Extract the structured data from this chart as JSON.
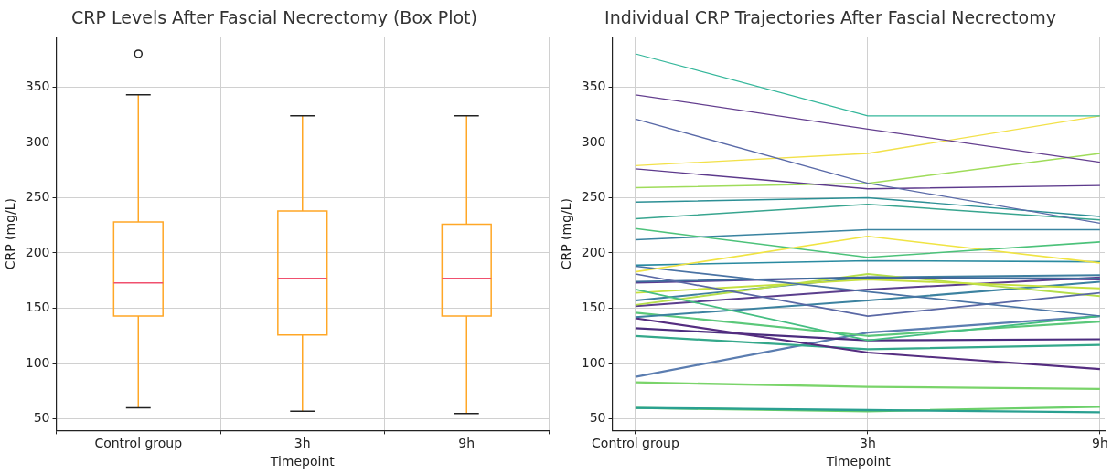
{
  "chart_data": [
    {
      "type": "box",
      "title": "CRP Levels After Fascial Necrectomy (Box Plot)",
      "xlabel": "Timepoint",
      "ylabel": "CRP (mg/L)",
      "categories": [
        "Control group",
        "3h",
        "9h"
      ],
      "color": "#ffa726",
      "ylim": [
        39.5,
        395
      ],
      "yticks": [
        50,
        100,
        150,
        200,
        250,
        300,
        350
      ],
      "grid": true,
      "legend": false,
      "boxes": [
        {
          "low": 60,
          "q1": 143,
          "median": 173,
          "q3": 228,
          "high": 343,
          "outliers": [
            380
          ]
        },
        {
          "low": 57,
          "q1": 126,
          "median": 177,
          "q3": 238,
          "high": 324
        },
        {
          "low": 55,
          "q1": 143,
          "median": 177,
          "q3": 226,
          "high": 324
        }
      ]
    },
    {
      "type": "line",
      "title": "Individual CRP Trajectories After Fascial Necrectomy",
      "xlabel": "Timepoint",
      "ylabel": "CRP (mg/L)",
      "categories": [
        "Control group",
        "3h",
        "9h"
      ],
      "ylim": [
        39.5,
        395
      ],
      "yticks": [
        50,
        100,
        150,
        200,
        250,
        300,
        350
      ],
      "grid": true,
      "legend": false,
      "marker": "none",
      "line_style": "solid",
      "series": [
        {
          "color": "#35b79b",
          "values": [
            380,
            324,
            324
          ]
        },
        {
          "color": "#643f8f",
          "values": [
            343,
            312,
            282
          ]
        },
        {
          "color": "#5a6aa8",
          "values": [
            321,
            263,
            227
          ]
        },
        {
          "color": "#f2e14a",
          "values": [
            279,
            290,
            324
          ]
        },
        {
          "color": "#5d3a8c",
          "values": [
            276,
            258,
            261
          ]
        },
        {
          "color": "#9fdc5a",
          "values": [
            259,
            263,
            290
          ]
        },
        {
          "color": "#2c8f95",
          "values": [
            246,
            250,
            233
          ]
        },
        {
          "color": "#38a58f",
          "values": [
            231,
            244,
            230
          ]
        },
        {
          "color": "#4cc27a",
          "values": [
            222,
            196,
            210
          ]
        },
        {
          "color": "#3a83a0",
          "values": [
            212,
            221,
            221
          ]
        },
        {
          "color": "#f0e443",
          "values": [
            183,
            215,
            191
          ]
        },
        {
          "color": "#2a8aa0",
          "values": [
            189,
            193,
            192
          ]
        },
        {
          "color": "#4a73a4",
          "values": [
            188,
            165,
            143
          ]
        },
        {
          "color": "#5a68a5",
          "values": [
            181,
            143,
            164
          ]
        },
        {
          "color": "#3d6b9b",
          "values": [
            174,
            178,
            177
          ]
        },
        {
          "color": "#5a3c91",
          "values": [
            173,
            178,
            176
          ]
        },
        {
          "color": "#45be82",
          "values": [
            167,
            121,
            143
          ]
        },
        {
          "color": "#c5e03e",
          "values": [
            164,
            176,
            168
          ]
        },
        {
          "color": "#b5de4b",
          "values": [
            153,
            181,
            161
          ]
        },
        {
          "color": "#3f7fa0",
          "values": [
            157,
            178,
            180
          ]
        },
        {
          "color": "#5b3f8d",
          "values": [
            152,
            167,
            178
          ]
        },
        {
          "color": "#3c82a0",
          "values": [
            142,
            157,
            174
          ]
        },
        {
          "color": "#5bc87a",
          "values": [
            146,
            125,
            138
          ]
        },
        {
          "color": "#552d80",
          "values": [
            141,
            110,
            95
          ]
        },
        {
          "color": "#4b2c7e",
          "values": [
            132,
            121,
            122
          ]
        },
        {
          "color": "#34a88b",
          "values": [
            125,
            113,
            117
          ]
        },
        {
          "color": "#5b7db0",
          "values": [
            88,
            128,
            143
          ]
        },
        {
          "color": "#7ad46a",
          "values": [
            83,
            79,
            77
          ]
        },
        {
          "color": "#2aa091",
          "values": [
            60,
            58,
            56
          ]
        },
        {
          "color": "#6cd06a",
          "values": [
            60,
            57,
            61
          ]
        }
      ]
    }
  ]
}
